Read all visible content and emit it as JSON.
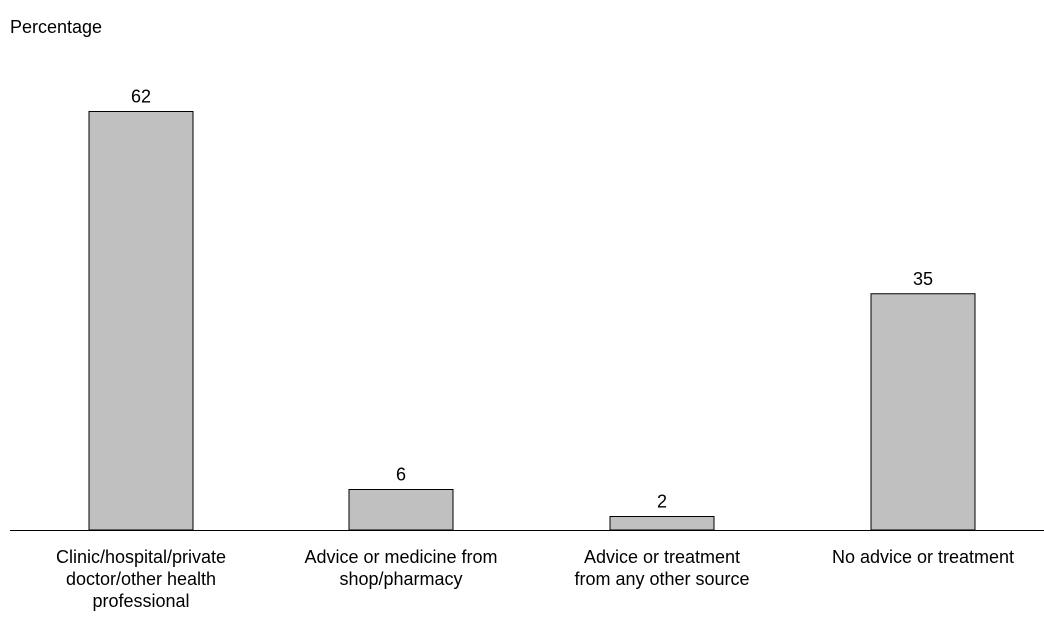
{
  "chart_data": {
    "type": "bar",
    "title": "",
    "xlabel": "",
    "ylabel": "Percentage",
    "categories": [
      [
        "Clinic/hospital/private",
        "doctor/other health",
        "professional"
      ],
      [
        "Advice or medicine from",
        "shop/pharmacy"
      ],
      [
        "Advice or treatment",
        "from any other source"
      ],
      [
        "No advice or treatment"
      ]
    ],
    "values": [
      62,
      6,
      2,
      35
    ],
    "ylim": [
      0,
      65
    ],
    "grid": false,
    "bar_color": "#c0c0c0",
    "bar_edge_color": "#000000",
    "data_labels": true
  }
}
